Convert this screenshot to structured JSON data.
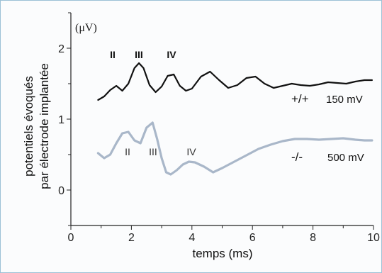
{
  "chart_data": {
    "type": "line",
    "xlabel": "temps (ms)",
    "ylabel_line1": "potentiels évoqués",
    "ylabel_line2": "par électrode implantée",
    "unit_label": "(μV)",
    "xlim": [
      0,
      10
    ],
    "ylim": [
      -0.5,
      2.5
    ],
    "x_ticks": [
      "0",
      "2",
      "4",
      "6",
      "8",
      "10"
    ],
    "y_ticks": [
      "0",
      "1",
      "2"
    ],
    "series": [
      {
        "name": "+/+",
        "stimulus": "150 mV",
        "color": "#111111",
        "x": [
          0.9,
          1.1,
          1.3,
          1.5,
          1.7,
          1.9,
          2.1,
          2.25,
          2.4,
          2.6,
          2.8,
          3.0,
          3.2,
          3.4,
          3.6,
          3.8,
          4.0,
          4.3,
          4.6,
          4.9,
          5.2,
          5.5,
          5.8,
          6.1,
          6.4,
          6.7,
          7.0,
          7.3,
          7.6,
          7.9,
          8.2,
          8.5,
          8.8,
          9.1,
          9.4,
          9.7,
          9.95
        ],
        "values": [
          1.27,
          1.32,
          1.41,
          1.47,
          1.4,
          1.5,
          1.72,
          1.79,
          1.72,
          1.48,
          1.38,
          1.46,
          1.61,
          1.63,
          1.47,
          1.4,
          1.43,
          1.6,
          1.67,
          1.55,
          1.44,
          1.48,
          1.58,
          1.6,
          1.5,
          1.44,
          1.47,
          1.5,
          1.48,
          1.47,
          1.49,
          1.52,
          1.51,
          1.5,
          1.53,
          1.55,
          1.55
        ]
      },
      {
        "name": "-/-",
        "stimulus": "500 mV",
        "color": "#a9b7c9",
        "x": [
          0.9,
          1.1,
          1.3,
          1.5,
          1.7,
          1.9,
          2.1,
          2.3,
          2.5,
          2.7,
          2.85,
          3.0,
          3.15,
          3.3,
          3.5,
          3.7,
          3.9,
          4.1,
          4.4,
          4.7,
          5.0,
          5.4,
          5.8,
          6.2,
          6.6,
          7.0,
          7.4,
          7.8,
          8.2,
          8.6,
          9.0,
          9.4,
          9.7,
          9.95
        ],
        "values": [
          0.52,
          0.45,
          0.5,
          0.66,
          0.8,
          0.82,
          0.7,
          0.66,
          0.88,
          0.95,
          0.72,
          0.45,
          0.25,
          0.22,
          0.28,
          0.36,
          0.4,
          0.39,
          0.33,
          0.25,
          0.31,
          0.4,
          0.49,
          0.58,
          0.64,
          0.69,
          0.72,
          0.72,
          0.71,
          0.72,
          0.73,
          0.71,
          0.7,
          0.7
        ]
      }
    ],
    "peak_labels_top": [
      "II",
      "III",
      "IV"
    ],
    "peak_labels_bottom": [
      "II",
      "III",
      "IV"
    ],
    "grid": false
  }
}
